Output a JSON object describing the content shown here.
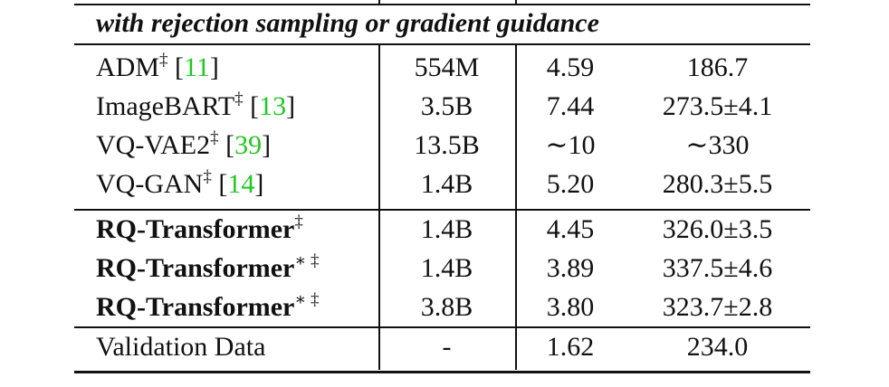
{
  "section_header": "with rejection sampling or gradient guidance",
  "rows": [
    {
      "name": "ADM",
      "mark": "‡",
      "cite": "11",
      "params": "554M",
      "fid": "4.59",
      "is": "186.7"
    },
    {
      "name": "ImageBART",
      "mark": "‡",
      "cite": "13",
      "params": "3.5B",
      "fid": "7.44",
      "is": "273.5±4.1"
    },
    {
      "name": "VQ-VAE2",
      "mark": "‡",
      "cite": "39",
      "params": "13.5B",
      "fid": "∼10",
      "is": "∼330"
    },
    {
      "name": "VQ-GAN",
      "mark": "‡",
      "cite": "14",
      "params": "1.4B",
      "fid": "5.20",
      "is": "280.3±5.5"
    },
    {
      "name": "RQ-Transformer",
      "mark": "‡",
      "params": "1.4B",
      "fid": "4.45",
      "is": "326.0±3.5"
    },
    {
      "name": "RQ-Transformer",
      "mark": "∗ ‡",
      "params": "1.4B",
      "fid": "3.89",
      "is": "337.5±4.6"
    },
    {
      "name": "RQ-Transformer",
      "mark": "∗ ‡",
      "params": "3.8B",
      "fid": "3.80",
      "is": "323.7±2.8"
    },
    {
      "name": "Validation Data",
      "params": "-",
      "fid": "1.62",
      "is": "234.0"
    }
  ]
}
